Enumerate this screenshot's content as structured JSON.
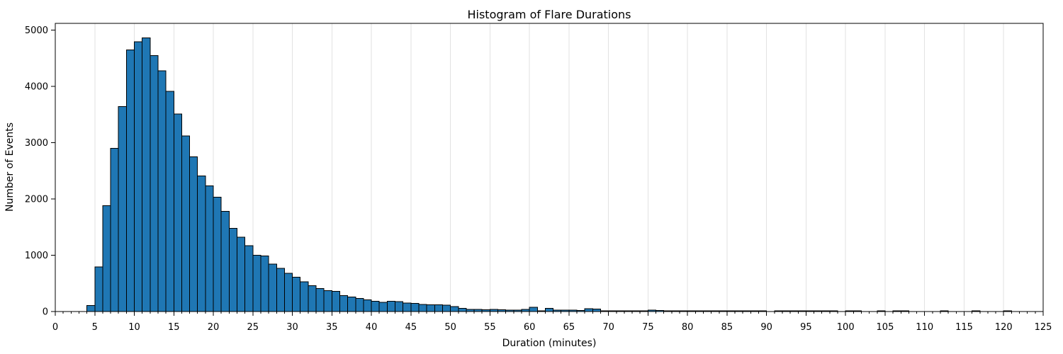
{
  "figure": {
    "title": "Histogram of Flare Durations",
    "xlabel": "Duration (minutes)",
    "ylabel": "Number of Events"
  },
  "chart_data": {
    "type": "bar",
    "subtype": "histogram",
    "title": "Histogram of Flare Durations",
    "xlabel": "Duration (minutes)",
    "ylabel": "Number of Events",
    "bin_start_minute": 4,
    "bin_width_minutes": 1,
    "counts": [
      110,
      790,
      1880,
      2900,
      3640,
      4650,
      4790,
      4860,
      4550,
      4280,
      3910,
      3510,
      3120,
      2750,
      2410,
      2230,
      2030,
      1780,
      1480,
      1320,
      1170,
      1000,
      990,
      840,
      770,
      680,
      610,
      530,
      460,
      410,
      370,
      360,
      285,
      255,
      230,
      210,
      180,
      165,
      185,
      175,
      148,
      145,
      125,
      122,
      120,
      115,
      85,
      55,
      40,
      35,
      32,
      35,
      30,
      28,
      26,
      40,
      75,
      15,
      55,
      25,
      25,
      25,
      20,
      50,
      45,
      15,
      15,
      12,
      15,
      12,
      12,
      25,
      22,
      12,
      13,
      13,
      12,
      12,
      13,
      12,
      12,
      13,
      12,
      12,
      13,
      12,
      0,
      12,
      12,
      13,
      12,
      13,
      12,
      15,
      12,
      0,
      12,
      12,
      0,
      0,
      13,
      0,
      15,
      13,
      0,
      0,
      0,
      0,
      13,
      0,
      0,
      0,
      13,
      0,
      0,
      0,
      13
    ],
    "x_ticks": [
      0,
      5,
      10,
      15,
      20,
      25,
      30,
      35,
      40,
      45,
      50,
      55,
      60,
      65,
      70,
      75,
      80,
      85,
      90,
      95,
      100,
      105,
      110,
      115,
      120,
      125
    ],
    "x_minor_tick_step": 1,
    "y_ticks": [
      0,
      1000,
      2000,
      3000,
      4000,
      5000
    ],
    "xlim": [
      0,
      125
    ],
    "ylim": [
      0,
      5120
    ],
    "grid": "vertical-only",
    "legend": "none",
    "colors": {
      "bar_fill": "#1f77b4",
      "bar_edge": "#000000",
      "grid": "#e2e2e2",
      "spine": "#000000",
      "text": "#000000",
      "background": "#ffffff"
    }
  }
}
